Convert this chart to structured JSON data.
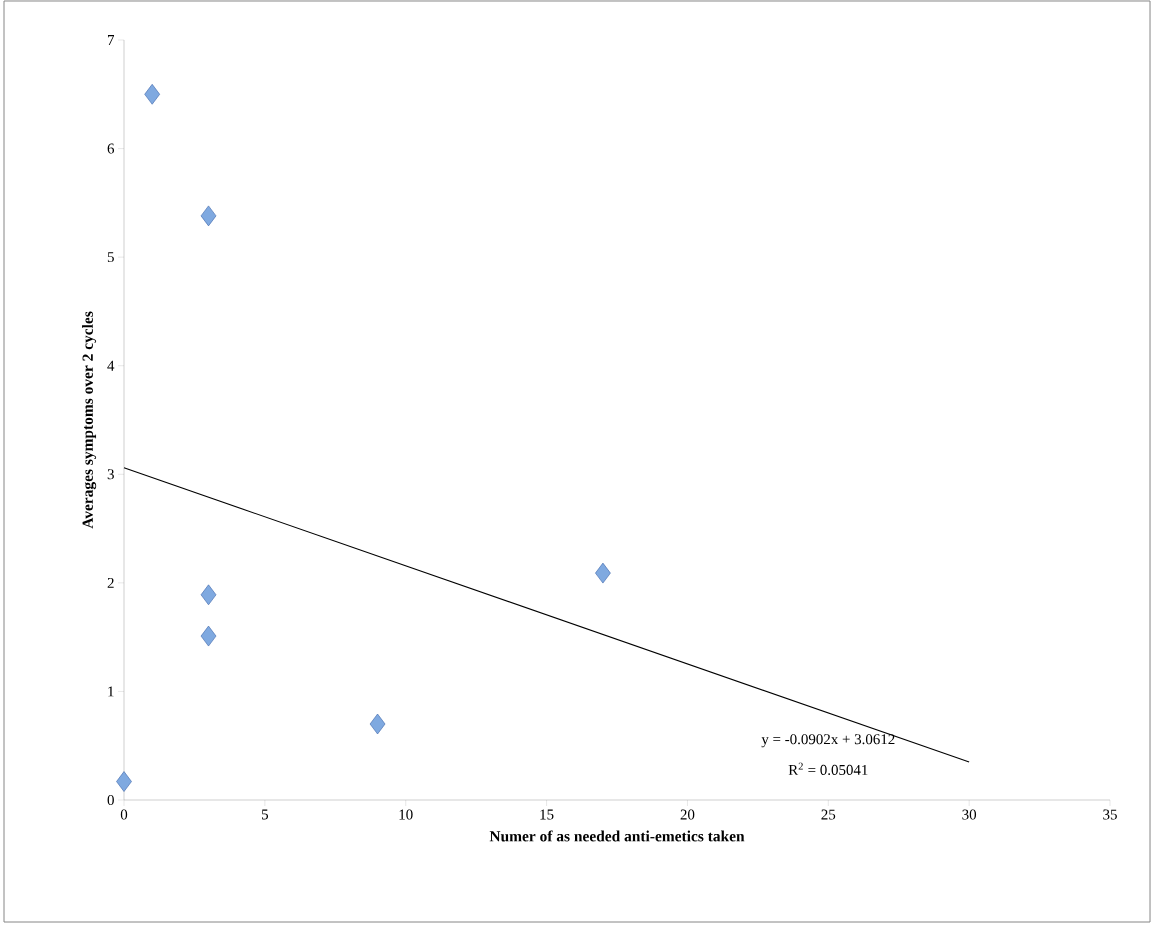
{
  "chart_data": {
    "type": "scatter",
    "xlabel": "Numer of as needed anti-emetics taken",
    "ylabel": "Averages symptoms over 2 cycles",
    "xlim": [
      0,
      35
    ],
    "ylim": [
      0,
      7
    ],
    "xticks": [
      0,
      5,
      10,
      15,
      20,
      25,
      30,
      35
    ],
    "yticks": [
      0,
      1,
      2,
      3,
      4,
      5,
      6,
      7
    ],
    "series": [
      {
        "color": "#7fa9e0",
        "marker": "diamond",
        "x": [
          0,
          1,
          3,
          3,
          3,
          9,
          17
        ],
        "values": [
          0.17,
          6.5,
          5.38,
          1.89,
          1.51,
          0.7,
          2.09
        ]
      },
      {
        "type": "line",
        "color": "#000000",
        "line_style": "solid",
        "marker": "none",
        "x": [
          0,
          30
        ],
        "values": [
          3.06,
          0.35
        ]
      }
    ],
    "annotations": [
      "y = -0.0902x + 3.0612",
      "R$^{2}$ = 0.05041"
    ]
  }
}
